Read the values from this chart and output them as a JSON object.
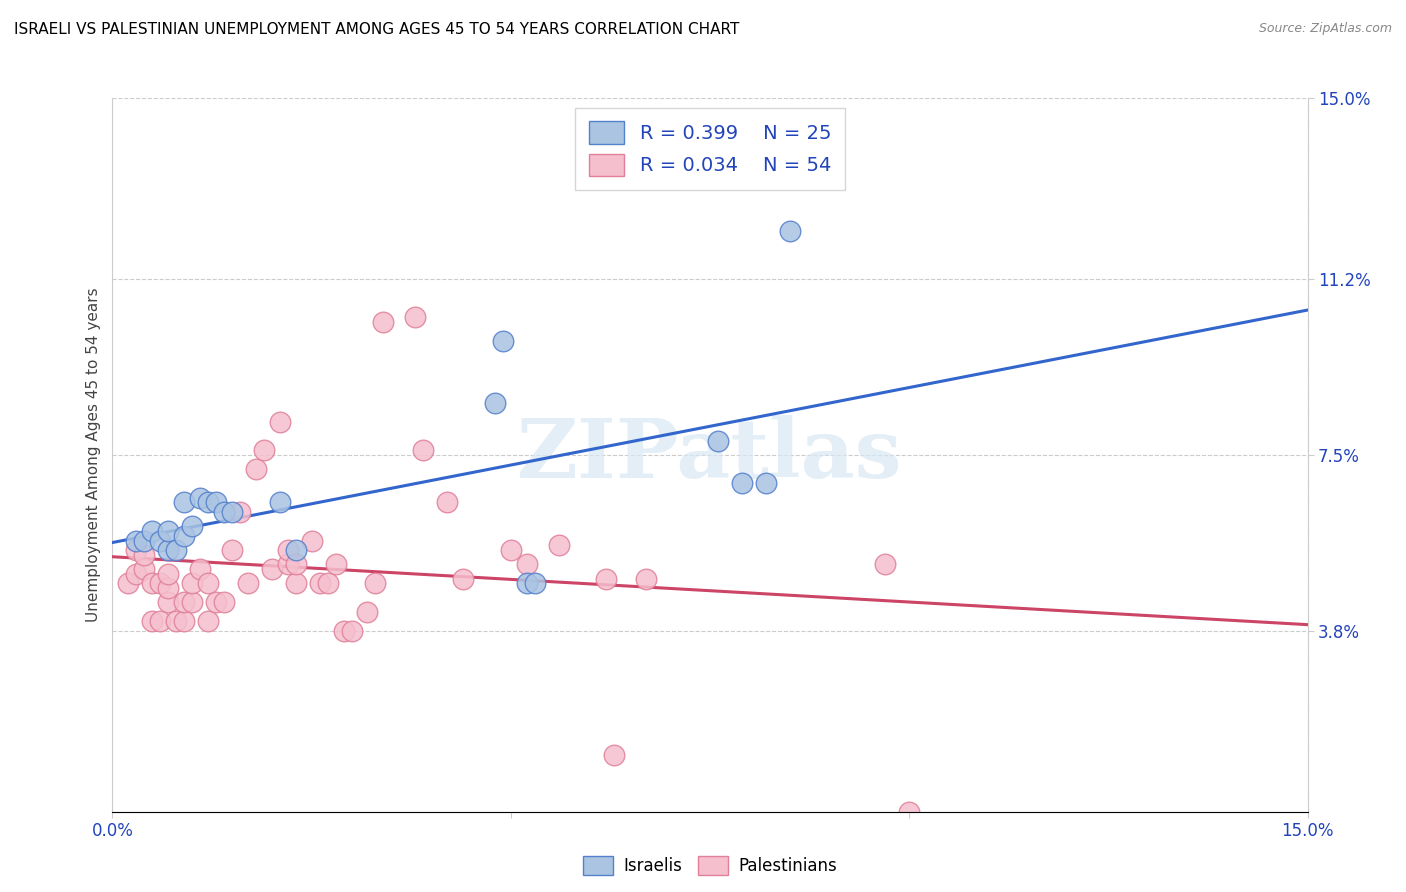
{
  "title": "ISRAELI VS PALESTINIAN UNEMPLOYMENT AMONG AGES 45 TO 54 YEARS CORRELATION CHART",
  "source": "Source: ZipAtlas.com",
  "ylabel": "Unemployment Among Ages 45 to 54 years",
  "xlim": [
    0.0,
    0.15
  ],
  "ylim": [
    0.0,
    0.15
  ],
  "yticks": [
    0.038,
    0.075,
    0.112,
    0.15
  ],
  "ytick_labels": [
    "3.8%",
    "7.5%",
    "11.2%",
    "15.0%"
  ],
  "xtick_labels_left": "0.0%",
  "xtick_labels_right": "15.0%",
  "watermark": "ZIPatlas",
  "israeli_color": "#aac4e2",
  "israeli_edge_color": "#5580cc",
  "palestinian_color": "#f5bfce",
  "palestinian_edge_color": "#e0809a",
  "trend_israeli_color": "#3366cc",
  "trend_palestinian_color": "#cc4466",
  "R_israeli": 0.399,
  "N_israeli": 25,
  "R_palestinian": 0.034,
  "N_palestinian": 54,
  "israeli_x": [
    0.003,
    0.004,
    0.005,
    0.006,
    0.007,
    0.007,
    0.008,
    0.009,
    0.009,
    0.01,
    0.011,
    0.012,
    0.013,
    0.014,
    0.015,
    0.021,
    0.023,
    0.048,
    0.049,
    0.052,
    0.053,
    0.076,
    0.079,
    0.082,
    0.085
  ],
  "israeli_y": [
    0.057,
    0.057,
    0.059,
    0.057,
    0.055,
    0.059,
    0.055,
    0.058,
    0.065,
    0.06,
    0.066,
    0.065,
    0.065,
    0.063,
    0.063,
    0.065,
    0.055,
    0.086,
    0.099,
    0.048,
    0.048,
    0.078,
    0.069,
    0.069,
    0.122
  ],
  "palestinian_x": [
    0.002,
    0.003,
    0.003,
    0.004,
    0.004,
    0.005,
    0.005,
    0.006,
    0.006,
    0.007,
    0.007,
    0.007,
    0.008,
    0.009,
    0.009,
    0.01,
    0.01,
    0.011,
    0.012,
    0.012,
    0.013,
    0.014,
    0.015,
    0.016,
    0.017,
    0.018,
    0.019,
    0.02,
    0.021,
    0.022,
    0.022,
    0.023,
    0.023,
    0.025,
    0.026,
    0.027,
    0.028,
    0.029,
    0.03,
    0.032,
    0.033,
    0.034,
    0.038,
    0.039,
    0.042,
    0.044,
    0.05,
    0.052,
    0.056,
    0.062,
    0.063,
    0.067,
    0.097,
    0.1
  ],
  "palestinian_y": [
    0.048,
    0.05,
    0.055,
    0.051,
    0.054,
    0.04,
    0.048,
    0.04,
    0.048,
    0.044,
    0.047,
    0.05,
    0.04,
    0.04,
    0.044,
    0.044,
    0.048,
    0.051,
    0.04,
    0.048,
    0.044,
    0.044,
    0.055,
    0.063,
    0.048,
    0.072,
    0.076,
    0.051,
    0.082,
    0.052,
    0.055,
    0.048,
    0.052,
    0.057,
    0.048,
    0.048,
    0.052,
    0.038,
    0.038,
    0.042,
    0.048,
    0.103,
    0.104,
    0.076,
    0.065,
    0.049,
    0.055,
    0.052,
    0.056,
    0.049,
    0.012,
    0.049,
    0.052,
    0.0
  ]
}
